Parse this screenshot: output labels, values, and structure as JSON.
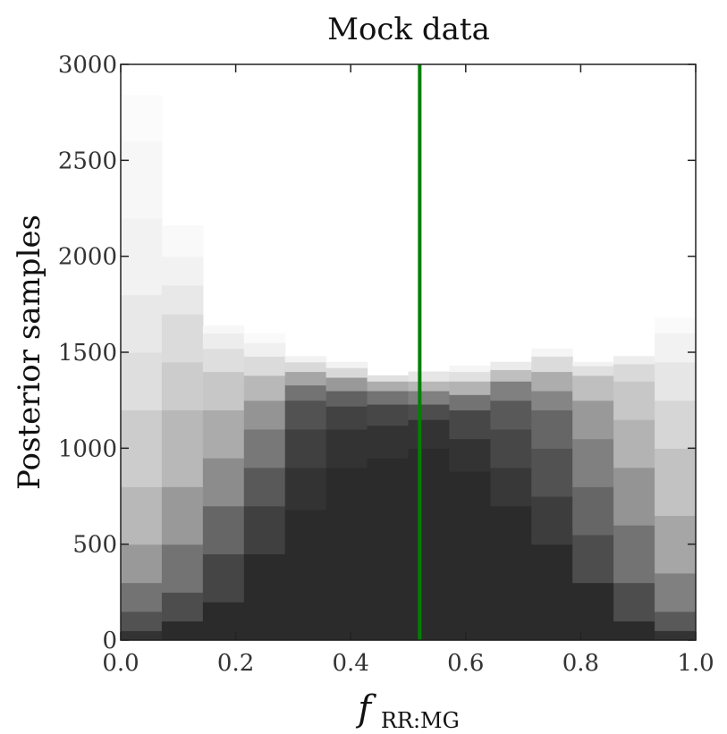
{
  "chart_data": {
    "type": "heatmap",
    "title": "Mock data",
    "xlabel": "f",
    "xlabel_subscript": "RR:MG",
    "ylabel": "Posterior samples",
    "xlim": [
      0.0,
      1.0
    ],
    "ylim": [
      0,
      3000
    ],
    "xticks": [
      "0.0",
      "0.2",
      "0.4",
      "0.6",
      "0.8",
      "1.0"
    ],
    "yticks": [
      "0",
      "500",
      "1000",
      "1500",
      "2000",
      "2500",
      "3000"
    ],
    "grid": false,
    "bins": [
      {
        "x0": 0.0,
        "x1": 0.0714,
        "levels": [
          {
            "y": 0,
            "gray": 0.2
          },
          {
            "y": 50,
            "gray": 0.32
          },
          {
            "y": 150,
            "gray": 0.45
          },
          {
            "y": 300,
            "gray": 0.6
          },
          {
            "y": 500,
            "gray": 0.72
          },
          {
            "y": 800,
            "gray": 0.8
          },
          {
            "y": 1200,
            "gray": 0.87
          },
          {
            "y": 1500,
            "gray": 0.91
          },
          {
            "y": 1800,
            "gray": 0.95
          },
          {
            "y": 2200,
            "gray": 0.97
          },
          {
            "y": 2600,
            "gray": 0.985
          },
          {
            "y": 2840,
            "gray": 1.0
          }
        ]
      },
      {
        "x0": 0.0714,
        "x1": 0.1429,
        "levels": [
          {
            "y": 0,
            "gray": 0.17
          },
          {
            "y": 100,
            "gray": 0.3
          },
          {
            "y": 250,
            "gray": 0.45
          },
          {
            "y": 500,
            "gray": 0.6
          },
          {
            "y": 800,
            "gray": 0.72
          },
          {
            "y": 1200,
            "gray": 0.8
          },
          {
            "y": 1450,
            "gray": 0.86
          },
          {
            "y": 1700,
            "gray": 0.91
          },
          {
            "y": 1850,
            "gray": 0.95
          },
          {
            "y": 2000,
            "gray": 0.975
          },
          {
            "y": 2160,
            "gray": 1.0
          }
        ]
      },
      {
        "x0": 0.1429,
        "x1": 0.2143,
        "levels": [
          {
            "y": 0,
            "gray": 0.17
          },
          {
            "y": 200,
            "gray": 0.27
          },
          {
            "y": 450,
            "gray": 0.4
          },
          {
            "y": 700,
            "gray": 0.55
          },
          {
            "y": 950,
            "gray": 0.67
          },
          {
            "y": 1200,
            "gray": 0.78
          },
          {
            "y": 1400,
            "gray": 0.87
          },
          {
            "y": 1520,
            "gray": 0.93
          },
          {
            "y": 1600,
            "gray": 0.97
          },
          {
            "y": 1640,
            "gray": 1.0
          }
        ]
      },
      {
        "x0": 0.2143,
        "x1": 0.2857,
        "levels": [
          {
            "y": 0,
            "gray": 0.17
          },
          {
            "y": 450,
            "gray": 0.25
          },
          {
            "y": 700,
            "gray": 0.35
          },
          {
            "y": 900,
            "gray": 0.47
          },
          {
            "y": 1100,
            "gray": 0.58
          },
          {
            "y": 1250,
            "gray": 0.72
          },
          {
            "y": 1380,
            "gray": 0.86
          },
          {
            "y": 1480,
            "gray": 0.94
          },
          {
            "y": 1550,
            "gray": 0.98
          },
          {
            "y": 1600,
            "gray": 1.0
          }
        ]
      },
      {
        "x0": 0.2857,
        "x1": 0.3571,
        "levels": [
          {
            "y": 0,
            "gray": 0.17
          },
          {
            "y": 680,
            "gray": 0.2
          },
          {
            "y": 900,
            "gray": 0.25
          },
          {
            "y": 1100,
            "gray": 0.32
          },
          {
            "y": 1250,
            "gray": 0.45
          },
          {
            "y": 1330,
            "gray": 0.65
          },
          {
            "y": 1400,
            "gray": 0.85
          },
          {
            "y": 1450,
            "gray": 0.95
          },
          {
            "y": 1480,
            "gray": 1.0
          }
        ]
      },
      {
        "x0": 0.3571,
        "x1": 0.4286,
        "levels": [
          {
            "y": 0,
            "gray": 0.17
          },
          {
            "y": 900,
            "gray": 0.2
          },
          {
            "y": 1100,
            "gray": 0.26
          },
          {
            "y": 1220,
            "gray": 0.38
          },
          {
            "y": 1300,
            "gray": 0.6
          },
          {
            "y": 1370,
            "gray": 0.85
          },
          {
            "y": 1420,
            "gray": 0.95
          },
          {
            "y": 1450,
            "gray": 1.0
          }
        ]
      },
      {
        "x0": 0.4286,
        "x1": 0.5,
        "levels": [
          {
            "y": 0,
            "gray": 0.17
          },
          {
            "y": 950,
            "gray": 0.2
          },
          {
            "y": 1120,
            "gray": 0.28
          },
          {
            "y": 1230,
            "gray": 0.45
          },
          {
            "y": 1300,
            "gray": 0.68
          },
          {
            "y": 1350,
            "gray": 0.88
          },
          {
            "y": 1380,
            "gray": 1.0
          }
        ]
      },
      {
        "x0": 0.5,
        "x1": 0.5714,
        "levels": [
          {
            "y": 0,
            "gray": 0.17
          },
          {
            "y": 1000,
            "gray": 0.2
          },
          {
            "y": 1150,
            "gray": 0.3
          },
          {
            "y": 1230,
            "gray": 0.5
          },
          {
            "y": 1300,
            "gray": 0.72
          },
          {
            "y": 1350,
            "gray": 0.9
          },
          {
            "y": 1400,
            "gray": 1.0
          }
        ]
      },
      {
        "x0": 0.5714,
        "x1": 0.6429,
        "levels": [
          {
            "y": 0,
            "gray": 0.17
          },
          {
            "y": 880,
            "gray": 0.2
          },
          {
            "y": 1050,
            "gray": 0.28
          },
          {
            "y": 1200,
            "gray": 0.45
          },
          {
            "y": 1280,
            "gray": 0.7
          },
          {
            "y": 1350,
            "gray": 0.88
          },
          {
            "y": 1400,
            "gray": 0.96
          },
          {
            "y": 1430,
            "gray": 1.0
          }
        ]
      },
      {
        "x0": 0.6429,
        "x1": 0.7143,
        "levels": [
          {
            "y": 0,
            "gray": 0.17
          },
          {
            "y": 700,
            "gray": 0.22
          },
          {
            "y": 900,
            "gray": 0.28
          },
          {
            "y": 1100,
            "gray": 0.35
          },
          {
            "y": 1250,
            "gray": 0.5
          },
          {
            "y": 1350,
            "gray": 0.75
          },
          {
            "y": 1410,
            "gray": 0.92
          },
          {
            "y": 1450,
            "gray": 1.0
          }
        ]
      },
      {
        "x0": 0.7143,
        "x1": 0.7857,
        "levels": [
          {
            "y": 0,
            "gray": 0.17
          },
          {
            "y": 500,
            "gray": 0.24
          },
          {
            "y": 750,
            "gray": 0.32
          },
          {
            "y": 1000,
            "gray": 0.4
          },
          {
            "y": 1200,
            "gray": 0.52
          },
          {
            "y": 1300,
            "gray": 0.68
          },
          {
            "y": 1400,
            "gray": 0.86
          },
          {
            "y": 1480,
            "gray": 0.96
          },
          {
            "y": 1520,
            "gray": 1.0
          }
        ]
      },
      {
        "x0": 0.7857,
        "x1": 0.8571,
        "levels": [
          {
            "y": 0,
            "gray": 0.17
          },
          {
            "y": 300,
            "gray": 0.3
          },
          {
            "y": 550,
            "gray": 0.4
          },
          {
            "y": 800,
            "gray": 0.5
          },
          {
            "y": 1050,
            "gray": 0.6
          },
          {
            "y": 1250,
            "gray": 0.75
          },
          {
            "y": 1380,
            "gray": 0.88
          },
          {
            "y": 1430,
            "gray": 0.95
          },
          {
            "y": 1450,
            "gray": 1.0
          }
        ]
      },
      {
        "x0": 0.8571,
        "x1": 0.9286,
        "levels": [
          {
            "y": 0,
            "gray": 0.17
          },
          {
            "y": 100,
            "gray": 0.3
          },
          {
            "y": 300,
            "gray": 0.45
          },
          {
            "y": 600,
            "gray": 0.58
          },
          {
            "y": 900,
            "gray": 0.7
          },
          {
            "y": 1150,
            "gray": 0.78
          },
          {
            "y": 1350,
            "gray": 0.85
          },
          {
            "y": 1440,
            "gray": 0.93
          },
          {
            "y": 1480,
            "gray": 1.0
          }
        ]
      },
      {
        "x0": 0.9286,
        "x1": 1.0,
        "levels": [
          {
            "y": 0,
            "gray": 0.2
          },
          {
            "y": 50,
            "gray": 0.35
          },
          {
            "y": 150,
            "gray": 0.5
          },
          {
            "y": 350,
            "gray": 0.65
          },
          {
            "y": 650,
            "gray": 0.76
          },
          {
            "y": 1000,
            "gray": 0.84
          },
          {
            "y": 1250,
            "gray": 0.9
          },
          {
            "y": 1450,
            "gray": 0.95
          },
          {
            "y": 1600,
            "gray": 0.98
          },
          {
            "y": 1680,
            "gray": 1.0
          }
        ]
      }
    ],
    "vline": {
      "x": 0.52,
      "color": "#008000"
    }
  }
}
